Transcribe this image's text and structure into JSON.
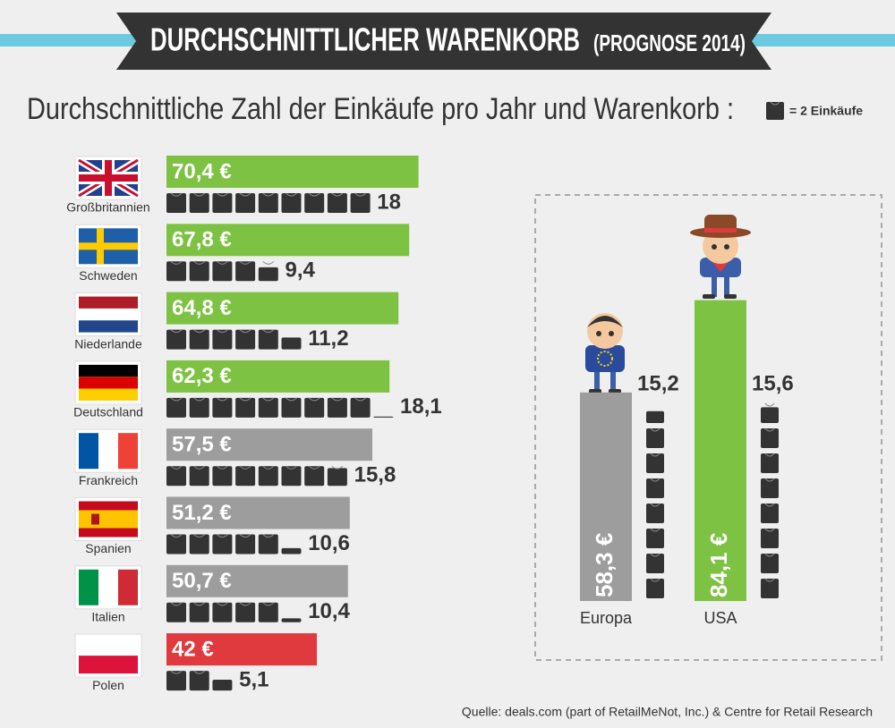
{
  "header": {
    "title": "DURCHSCHNITTLICHER WARENKORB",
    "tag": "(PROGNOSE 2014)"
  },
  "chart_data": [
    {
      "type": "bar",
      "title": "Durchschnittliche Zahl der Einkäufe pro Jahr und Warenkorb :",
      "legend": {
        "label": "= 2 Einkäufe",
        "per_icon": 2
      },
      "categories": [
        "Großbritannien",
        "Schweden",
        "Niederlande",
        "Deutschland",
        "Frankreich",
        "Spanien",
        "Italien",
        "Polen"
      ],
      "values": [
        70.4,
        67.8,
        64.8,
        62.3,
        57.5,
        51.2,
        50.7,
        42
      ],
      "value_labels": [
        "70,4 €",
        "67,8 €",
        "64,8 €",
        "62,3 €",
        "57,5 €",
        "51,2 €",
        "50,7 €",
        "42 €"
      ],
      "colors": [
        "#7dc242",
        "#7dc242",
        "#7dc242",
        "#7dc242",
        "#9d9d9d",
        "#9d9d9d",
        "#9d9d9d",
        "#e0393e"
      ],
      "purchases": [
        18,
        9.4,
        11.2,
        18.1,
        15.8,
        10.6,
        10.4,
        5.1
      ],
      "purchase_labels": [
        "18",
        "9,4",
        "11,2",
        "18,1",
        "15,8",
        "10,6",
        "10,4",
        "5,1"
      ]
    },
    {
      "type": "column",
      "categories": [
        "Europa",
        "USA"
      ],
      "values": [
        58.3,
        84.1
      ],
      "value_labels": [
        "58,3 €",
        "84,1 €"
      ],
      "colors": [
        "#9d9d9d",
        "#7dc242"
      ],
      "purchases": [
        15.2,
        15.6
      ],
      "purchase_labels": [
        "15,2",
        "15,6"
      ]
    }
  ],
  "source": "Quelle: deals.com (part of RetailMeNot, Inc.) & Centre for Retail Research"
}
